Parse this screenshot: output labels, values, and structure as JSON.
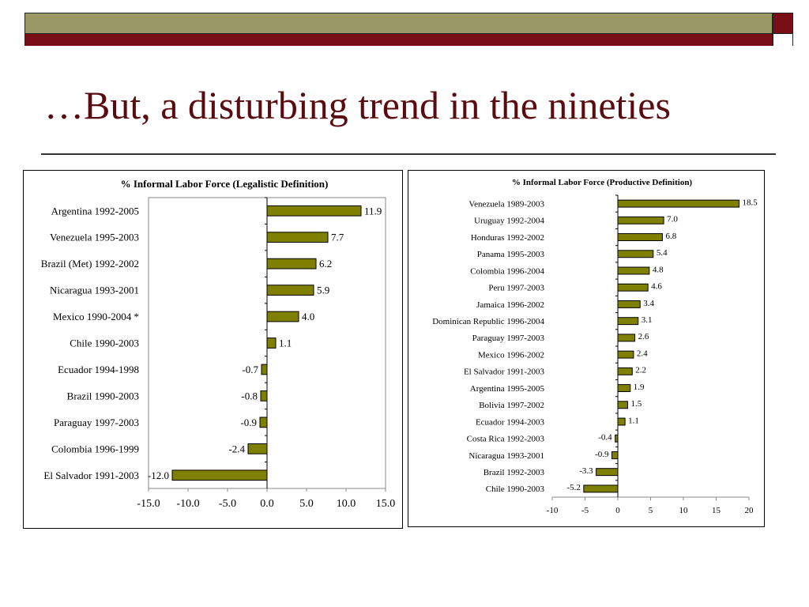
{
  "slide": {
    "title": "…But, a disturbing trend in the nineties",
    "colors": {
      "band_olive": "#9a9966",
      "band_maroon": "#7a0e16",
      "title": "#5a0b10",
      "bar": "#808000"
    }
  },
  "chart_data": [
    {
      "type": "bar",
      "orientation": "horizontal",
      "title": "% Informal Labor Force (Legalistic Definition)",
      "categories": [
        "Argentina 1992-2005",
        "Venezuela 1995-2003",
        "Brazil (Met) 1992-2002",
        "Nicaragua 1993-2001",
        "Mexico 1990-2004 *",
        "Chile 1990-2003",
        "Ecuador 1994-1998",
        "Brazil 1990-2003",
        "Paraguay 1997-2003",
        "Colombia 1996-1999",
        "El Salvador 1991-2003"
      ],
      "values": [
        11.9,
        7.7,
        6.2,
        5.9,
        4.0,
        1.1,
        -0.7,
        -0.8,
        -0.9,
        -2.4,
        -12.0
      ],
      "value_labels": [
        "11.9",
        "7.7",
        "6.2",
        "5.9",
        "4.0",
        "1.1",
        "-0.7",
        "-0.8",
        "-0.9",
        "-2.4",
        "-12.0"
      ],
      "xlim": [
        -15,
        15
      ],
      "xticks": [
        -15,
        -10,
        -5,
        0,
        5,
        10,
        15
      ],
      "xtick_labels": [
        "-15.0",
        "-10.0",
        "-5.0",
        "0.0",
        "5.0",
        "10.0",
        "15.0"
      ],
      "plot_border": true,
      "grid": false
    },
    {
      "type": "bar",
      "orientation": "horizontal",
      "title": "% Informal Labor Force (Productive Definition)",
      "categories": [
        "Venezuela 1989-2003",
        "Uruguay 1992-2004",
        "Honduras 1992-2002",
        "Panama 1995-2003",
        "Colombia 1996-2004",
        "Peru 1997-2003",
        "Jamaica 1996-2002",
        "Dominican Republic 1996-2004",
        "Paraguay 1997-2003",
        "Mexico 1996-2002",
        "El Salvador 1991-2003",
        "Argentina 1995-2005",
        "Bolivia 1997-2002",
        "Ecuador 1994-2003",
        "Costa Rica 1992-2003",
        "Nicaragua 1993-2001",
        "Brazil 1992-2003",
        "Chile 1990-2003"
      ],
      "values": [
        18.5,
        7.0,
        6.8,
        5.4,
        4.8,
        4.6,
        3.4,
        3.1,
        2.6,
        2.4,
        2.2,
        1.9,
        1.5,
        1.1,
        -0.4,
        -0.9,
        -3.3,
        -5.2
      ],
      "value_labels": [
        "18.5",
        "7.0",
        "6.8",
        "5.4",
        "4.8",
        "4.6",
        "3.4",
        "3.1",
        "2.6",
        "2.4",
        "2.2",
        "1.9",
        "1.5",
        "1.1",
        "-0.4",
        "-0.9",
        "-3.3",
        "-5.2"
      ],
      "xlim": [
        -10,
        20
      ],
      "xticks": [
        -10,
        -5,
        0,
        5,
        10,
        15,
        20
      ],
      "xtick_labels": [
        "-10",
        "-5",
        "0",
        "5",
        "10",
        "15",
        "20"
      ],
      "plot_border": false,
      "grid": false
    }
  ]
}
